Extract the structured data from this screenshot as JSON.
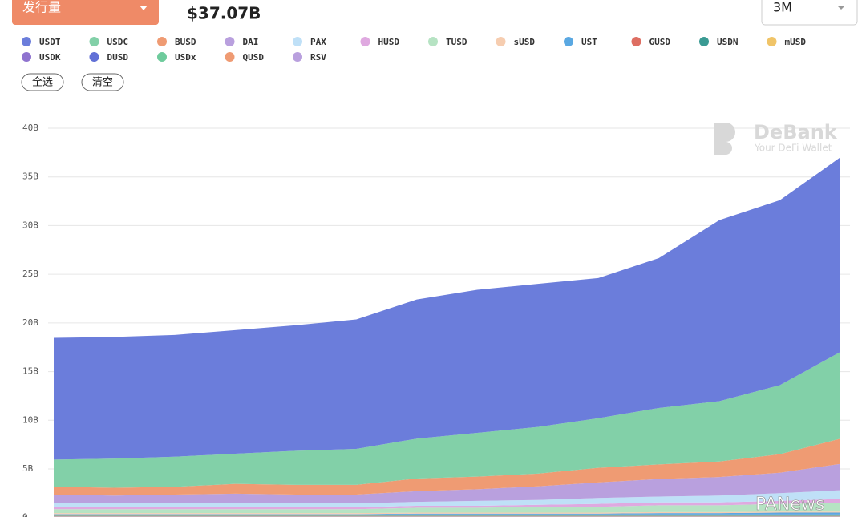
{
  "ui": {
    "dropdown": "发行量",
    "total": "$37.07B",
    "range": "3M",
    "select_all": "全选",
    "clear": "清空",
    "watermark": "DeBank",
    "watermark_sub": "Your DeFi Wallet",
    "source": "PANews"
  },
  "chart_data": {
    "type": "stacked-area",
    "ylim": [
      0,
      40
    ],
    "yticks": [
      0,
      {
        "value": 5,
        "label": "5B"
      },
      {
        "value": 10,
        "label": "10B"
      },
      {
        "value": 15,
        "label": "15B"
      },
      {
        "value": 20,
        "label": "20B"
      },
      {
        "value": 25,
        "label": "25B"
      },
      {
        "value": 30,
        "label": "30B"
      },
      {
        "value": 35,
        "label": "35B"
      },
      {
        "value": 40,
        "label": "40B"
      }
    ],
    "grid": true,
    "series": [
      {
        "name": "USDT",
        "color": "#6b7ddb",
        "values": [
          12.5,
          12.5,
          12.5,
          12.7,
          12.9,
          13.3,
          14.3,
          14.7,
          14.7,
          14.4,
          15.4,
          18.6,
          19.0,
          20.0
        ]
      },
      {
        "name": "USDC",
        "color": "#82d0a8",
        "values": [
          2.8,
          3.0,
          3.1,
          3.1,
          3.5,
          3.7,
          4.1,
          4.5,
          4.8,
          5.1,
          5.8,
          6.2,
          7.1,
          8.9
        ]
      },
      {
        "name": "BUSD",
        "color": "#ef9b73",
        "values": [
          0.8,
          0.8,
          0.8,
          1.0,
          1.0,
          1.0,
          1.3,
          1.3,
          1.3,
          1.5,
          1.5,
          1.6,
          1.9,
          2.6
        ]
      },
      {
        "name": "DAI",
        "color": "#b9a0de",
        "values": [
          0.9,
          0.8,
          0.9,
          1.0,
          0.9,
          0.9,
          1.1,
          1.2,
          1.4,
          1.6,
          1.8,
          1.9,
          2.1,
          2.7
        ]
      },
      {
        "name": "PAX",
        "color": "#bfe0f7",
        "values": [
          0.4,
          0.4,
          0.4,
          0.4,
          0.4,
          0.4,
          0.4,
          0.5,
          0.5,
          0.6,
          0.6,
          0.7,
          0.8,
          0.9
        ]
      },
      {
        "name": "HUSD",
        "color": "#dfa9e0",
        "values": [
          0.2,
          0.2,
          0.2,
          0.2,
          0.2,
          0.2,
          0.2,
          0.2,
          0.2,
          0.3,
          0.3,
          0.3,
          0.3,
          0.4
        ]
      },
      {
        "name": "TUSD",
        "color": "#b6e3c3",
        "values": [
          0.4,
          0.4,
          0.4,
          0.4,
          0.4,
          0.4,
          0.5,
          0.5,
          0.6,
          0.6,
          0.7,
          0.7,
          0.8,
          0.9
        ]
      },
      {
        "name": "sUSD",
        "color": "#f6cdb0",
        "values": [
          0.1,
          0.1,
          0.1,
          0.1,
          0.1,
          0.1,
          0.1,
          0.1,
          0.1,
          0.1,
          0.1,
          0.1,
          0.1,
          0.1
        ]
      },
      {
        "name": "UST",
        "color": "#5aa8e2",
        "values": [
          0.05,
          0.05,
          0.05,
          0.05,
          0.05,
          0.05,
          0.1,
          0.1,
          0.1,
          0.1,
          0.15,
          0.15,
          0.2,
          0.2
        ]
      },
      {
        "name": "GUSD",
        "color": "#de6e62",
        "values": [
          0.1,
          0.1,
          0.1,
          0.1,
          0.1,
          0.1,
          0.1,
          0.1,
          0.1,
          0.1,
          0.1,
          0.1,
          0.1,
          0.1
        ]
      },
      {
        "name": "USDN",
        "color": "#3a9a93",
        "values": [
          0.05,
          0.05,
          0.05,
          0.05,
          0.05,
          0.05,
          0.05,
          0.05,
          0.05,
          0.05,
          0.05,
          0.05,
          0.05,
          0.05
        ]
      },
      {
        "name": "mUSD",
        "color": "#f0c468",
        "values": [
          0.05,
          0.05,
          0.05,
          0.05,
          0.05,
          0.05,
          0.05,
          0.05,
          0.05,
          0.05,
          0.05,
          0.05,
          0.05,
          0.05
        ]
      },
      {
        "name": "USDK",
        "color": "#8f73cf",
        "values": [
          0.03,
          0.03,
          0.03,
          0.03,
          0.03,
          0.03,
          0.03,
          0.03,
          0.03,
          0.03,
          0.03,
          0.03,
          0.03,
          0.03
        ]
      },
      {
        "name": "DUSD",
        "color": "#6170d6",
        "values": [
          0.02,
          0.02,
          0.02,
          0.02,
          0.02,
          0.02,
          0.02,
          0.02,
          0.02,
          0.02,
          0.02,
          0.02,
          0.02,
          0.02
        ]
      },
      {
        "name": "USDx",
        "color": "#6ecb9c",
        "values": [
          0.02,
          0.02,
          0.02,
          0.02,
          0.02,
          0.02,
          0.02,
          0.02,
          0.02,
          0.02,
          0.02,
          0.02,
          0.02,
          0.02
        ]
      },
      {
        "name": "QUSD",
        "color": "#ef9b73",
        "values": [
          0.02,
          0.02,
          0.02,
          0.02,
          0.02,
          0.02,
          0.02,
          0.02,
          0.02,
          0.02,
          0.02,
          0.02,
          0.02,
          0.02
        ]
      },
      {
        "name": "RSV",
        "color": "#b9a0de",
        "values": [
          0.02,
          0.02,
          0.02,
          0.02,
          0.02,
          0.02,
          0.02,
          0.02,
          0.02,
          0.02,
          0.02,
          0.02,
          0.02,
          0.02
        ]
      }
    ]
  }
}
